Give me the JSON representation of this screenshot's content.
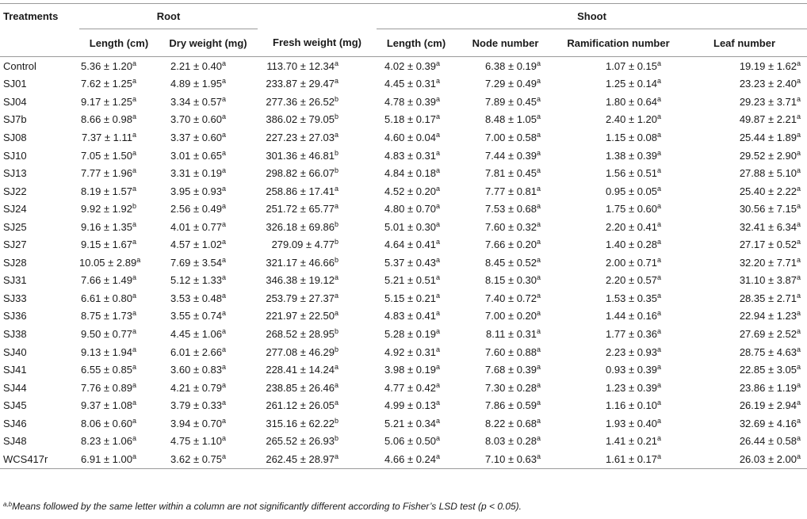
{
  "table": {
    "corner_header": "Treatments",
    "groups": {
      "root": "Root",
      "shoot": "Shoot"
    },
    "columns": [
      "Length (cm)",
      "Dry weight (mg)",
      "Fresh weight (mg)",
      "Length (cm)",
      "Node number",
      "Ramification number",
      "Leaf number"
    ],
    "rows": [
      {
        "t": "Control",
        "c": [
          [
            "5.36 ± 1.20",
            "a"
          ],
          [
            "2.21 ± 0.40",
            "a"
          ],
          [
            "113.70 ± 12.34",
            "a"
          ],
          [
            "4.02 ± 0.39",
            "a"
          ],
          [
            "6.38 ± 0.19",
            "a"
          ],
          [
            "1.07 ± 0.15",
            "a"
          ],
          [
            "19.19 ± 1.62",
            "a"
          ]
        ]
      },
      {
        "t": "SJ01",
        "c": [
          [
            "7.62 ± 1.25",
            "a"
          ],
          [
            "4.89 ± 1.95",
            "a"
          ],
          [
            "233.87 ± 29.47",
            "a"
          ],
          [
            "4.45 ± 0.31",
            "a"
          ],
          [
            "7.29 ± 0.49",
            "a"
          ],
          [
            "1.25 ± 0.14",
            "a"
          ],
          [
            "23.23 ± 2.40",
            "a"
          ]
        ]
      },
      {
        "t": "SJ04",
        "c": [
          [
            "9.17 ± 1.25",
            "a"
          ],
          [
            "3.34 ± 0.57",
            "a"
          ],
          [
            "277.36 ± 26.52",
            "b"
          ],
          [
            "4.78 ± 0.39",
            "a"
          ],
          [
            "7.89 ± 0.45",
            "a"
          ],
          [
            "1.80 ± 0.64",
            "a"
          ],
          [
            "29.23 ± 3.71",
            "a"
          ]
        ]
      },
      {
        "t": "SJ7b",
        "c": [
          [
            "8.66 ± 0.98",
            "a"
          ],
          [
            "3.70 ± 0.60",
            "a"
          ],
          [
            "386.02 ± 79.05",
            "b"
          ],
          [
            "5.18 ± 0.17",
            "a"
          ],
          [
            "8.48 ± 1.05",
            "a"
          ],
          [
            "2.40 ± 1.20",
            "a"
          ],
          [
            "49.87 ± 2.21",
            "a"
          ]
        ]
      },
      {
        "t": "SJ08",
        "c": [
          [
            "7.37 ± 1.11",
            "a"
          ],
          [
            "3.37 ± 0.60",
            "a"
          ],
          [
            "227.23 ± 27.03",
            "a"
          ],
          [
            "4.60 ± 0.04",
            "a"
          ],
          [
            "7.00 ± 0.58",
            "a"
          ],
          [
            "1.15 ± 0.08",
            "a"
          ],
          [
            "25.44 ± 1.89",
            "a"
          ]
        ]
      },
      {
        "t": "SJ10",
        "c": [
          [
            "7.05 ± 1.50",
            "a"
          ],
          [
            "3.01 ± 0.65",
            "a"
          ],
          [
            "301.36 ± 46.81",
            "b"
          ],
          [
            "4.83 ± 0.31",
            "a"
          ],
          [
            "7.44 ± 0.39",
            "a"
          ],
          [
            "1.38 ± 0.39",
            "a"
          ],
          [
            "29.52 ± 2.90",
            "a"
          ]
        ]
      },
      {
        "t": "SJ13",
        "c": [
          [
            "7.77 ± 1.96",
            "a"
          ],
          [
            "3.31 ± 0.19",
            "a"
          ],
          [
            "298.82 ± 66.07",
            "b"
          ],
          [
            "4.84 ± 0.18",
            "a"
          ],
          [
            "7.81 ± 0.45",
            "a"
          ],
          [
            "1.56 ± 0.51",
            "a"
          ],
          [
            "27.88 ± 5.10",
            "a"
          ]
        ]
      },
      {
        "t": "SJ22",
        "c": [
          [
            "8.19 ± 1.57",
            "a"
          ],
          [
            "3.95 ± 0.93",
            "a"
          ],
          [
            "258.86 ± 17.41",
            "a"
          ],
          [
            "4.52 ± 0.20",
            "a"
          ],
          [
            "7.77 ± 0.81",
            "a"
          ],
          [
            "0.95 ± 0.05",
            "a"
          ],
          [
            "25.40 ± 2.22",
            "a"
          ]
        ]
      },
      {
        "t": "SJ24",
        "c": [
          [
            "9.92 ± 1.92",
            "b"
          ],
          [
            "2.56 ± 0.49",
            "a"
          ],
          [
            "251.72 ± 65.77",
            "a"
          ],
          [
            "4.80 ± 0.70",
            "a"
          ],
          [
            "7.53 ± 0.68",
            "a"
          ],
          [
            "1.75 ± 0.60",
            "a"
          ],
          [
            "30.56 ± 7.15",
            "a"
          ]
        ]
      },
      {
        "t": "SJ25",
        "c": [
          [
            "9.16 ± 1.35",
            "a"
          ],
          [
            "4.01 ± 0.77",
            "a"
          ],
          [
            "326.18 ± 69.86",
            "b"
          ],
          [
            "5.01 ± 0.30",
            "a"
          ],
          [
            "7.60 ± 0.32",
            "a"
          ],
          [
            "2.20 ± 0.41",
            "a"
          ],
          [
            "32.41 ± 6.34",
            "a"
          ]
        ]
      },
      {
        "t": "SJ27",
        "c": [
          [
            "9.15 ± 1.67",
            "a"
          ],
          [
            "4.57 ± 1.02",
            "a"
          ],
          [
            "279.09 ± 4.77",
            "b"
          ],
          [
            "4.64 ± 0.41",
            "a"
          ],
          [
            "7.66 ± 0.20",
            "a"
          ],
          [
            "1.40 ± 0.28",
            "a"
          ],
          [
            "27.17 ± 0.52",
            "a"
          ]
        ]
      },
      {
        "t": "SJ28",
        "c": [
          [
            "10.05 ± 2.89",
            "a"
          ],
          [
            "7.69 ± 3.54",
            "a"
          ],
          [
            "321.17 ± 46.66",
            "b"
          ],
          [
            "5.37 ± 0.43",
            "a"
          ],
          [
            "8.45 ± 0.52",
            "a"
          ],
          [
            "2.00 ± 0.71",
            "a"
          ],
          [
            "32.20 ± 7.71",
            "a"
          ]
        ]
      },
      {
        "t": "SJ31",
        "c": [
          [
            "7.66 ± 1.49",
            "a"
          ],
          [
            "5.12 ± 1.33",
            "a"
          ],
          [
            "346.38 ± 19.12",
            "a"
          ],
          [
            "5.21 ± 0.51",
            "a"
          ],
          [
            "8.15 ± 0.30",
            "a"
          ],
          [
            "2.20 ± 0.57",
            "a"
          ],
          [
            "31.10 ± 3.87",
            "a"
          ]
        ]
      },
      {
        "t": "SJ33",
        "c": [
          [
            "6.61 ± 0.80",
            "a"
          ],
          [
            "3.53 ± 0.48",
            "a"
          ],
          [
            "253.79 ± 27.37",
            "a"
          ],
          [
            "5.15 ± 0.21",
            "a"
          ],
          [
            "7.40 ± 0.72",
            "a"
          ],
          [
            "1.53 ± 0.35",
            "a"
          ],
          [
            "28.35 ± 2.71",
            "a"
          ]
        ]
      },
      {
        "t": "SJ36",
        "c": [
          [
            "8.75 ± 1.73",
            "a"
          ],
          [
            "3.55 ± 0.74",
            "a"
          ],
          [
            "221.97 ± 22.50",
            "a"
          ],
          [
            "4.83 ± 0.41",
            "a"
          ],
          [
            "7.00 ± 0.20",
            "a"
          ],
          [
            "1.44 ± 0.16",
            "a"
          ],
          [
            "22.94 ± 1.23",
            "a"
          ]
        ]
      },
      {
        "t": "SJ38",
        "c": [
          [
            "9.50 ± 0.77",
            "a"
          ],
          [
            "4.45 ± 1.06",
            "a"
          ],
          [
            "268.52 ± 28.95",
            "b"
          ],
          [
            "5.28 ± 0.19",
            "a"
          ],
          [
            "8.11 ± 0.31",
            "a"
          ],
          [
            "1.77 ± 0.36",
            "a"
          ],
          [
            "27.69 ± 2.52",
            "a"
          ]
        ]
      },
      {
        "t": "SJ40",
        "c": [
          [
            "9.13 ± 1.94",
            "a"
          ],
          [
            "6.01 ± 2.66",
            "a"
          ],
          [
            "277.08 ± 46.29",
            "b"
          ],
          [
            "4.92 ± 0.31",
            "a"
          ],
          [
            "7.60 ± 0.88",
            "a"
          ],
          [
            "2.23 ± 0.93",
            "a"
          ],
          [
            "28.75 ± 4.63",
            "a"
          ]
        ]
      },
      {
        "t": "SJ41",
        "c": [
          [
            "6.55 ± 0.85",
            "a"
          ],
          [
            "3.60 ± 0.83",
            "a"
          ],
          [
            "228.41 ± 14.24",
            "a"
          ],
          [
            "3.98 ± 0.19",
            "a"
          ],
          [
            "7.68 ± 0.39",
            "a"
          ],
          [
            "0.93 ± 0.39",
            "a"
          ],
          [
            "22.85 ± 3.05",
            "a"
          ]
        ]
      },
      {
        "t": "SJ44",
        "c": [
          [
            "7.76 ± 0.89",
            "a"
          ],
          [
            "4.21 ± 0.79",
            "a"
          ],
          [
            "238.85 ± 26.46",
            "a"
          ],
          [
            "4.77 ± 0.42",
            "a"
          ],
          [
            "7.30 ± 0.28",
            "a"
          ],
          [
            "1.23 ± 0.39",
            "a"
          ],
          [
            "23.86 ± 1.19",
            "a"
          ]
        ]
      },
      {
        "t": "SJ45",
        "c": [
          [
            "9.37 ± 1.08",
            "a"
          ],
          [
            "3.79 ± 0.33",
            "a"
          ],
          [
            "261.12 ± 26.05",
            "a"
          ],
          [
            "4.99 ± 0.13",
            "a"
          ],
          [
            "7.86 ± 0.59",
            "a"
          ],
          [
            "1.16 ± 0.10",
            "a"
          ],
          [
            "26.19 ± 2.94",
            "a"
          ]
        ]
      },
      {
        "t": "SJ46",
        "c": [
          [
            "8.06 ± 0.60",
            "a"
          ],
          [
            "3.94 ± 0.70",
            "a"
          ],
          [
            "315.16 ± 62.22",
            "b"
          ],
          [
            "5.21 ± 0.34",
            "a"
          ],
          [
            "8.22 ± 0.68",
            "a"
          ],
          [
            "1.93 ± 0.40",
            "a"
          ],
          [
            "32.69 ± 4.16",
            "a"
          ]
        ]
      },
      {
        "t": "SJ48",
        "c": [
          [
            "8.23 ± 1.06",
            "a"
          ],
          [
            "4.75 ± 1.10",
            "a"
          ],
          [
            "265.52 ± 26.93",
            "b"
          ],
          [
            "5.06 ± 0.50",
            "a"
          ],
          [
            "8.03 ± 0.28",
            "a"
          ],
          [
            "1.41 ± 0.21",
            "a"
          ],
          [
            "26.44 ± 0.58",
            "a"
          ]
        ]
      },
      {
        "t": "WCS417r",
        "c": [
          [
            "6.91 ± 1.00",
            "a"
          ],
          [
            "3.62 ± 0.75",
            "a"
          ],
          [
            "262.45 ± 28.97",
            "a"
          ],
          [
            "4.66 ± 0.24",
            "a"
          ],
          [
            "7.10 ± 0.63",
            "a"
          ],
          [
            "1.61 ± 0.17",
            "a"
          ],
          [
            "26.03 ± 2.00",
            "a"
          ]
        ]
      }
    ]
  },
  "footnote": {
    "sup": "a,b",
    "text": "Means followed by the same letter within a column are not significantly different according to Fisher’s LSD test (p < 0.05)."
  }
}
